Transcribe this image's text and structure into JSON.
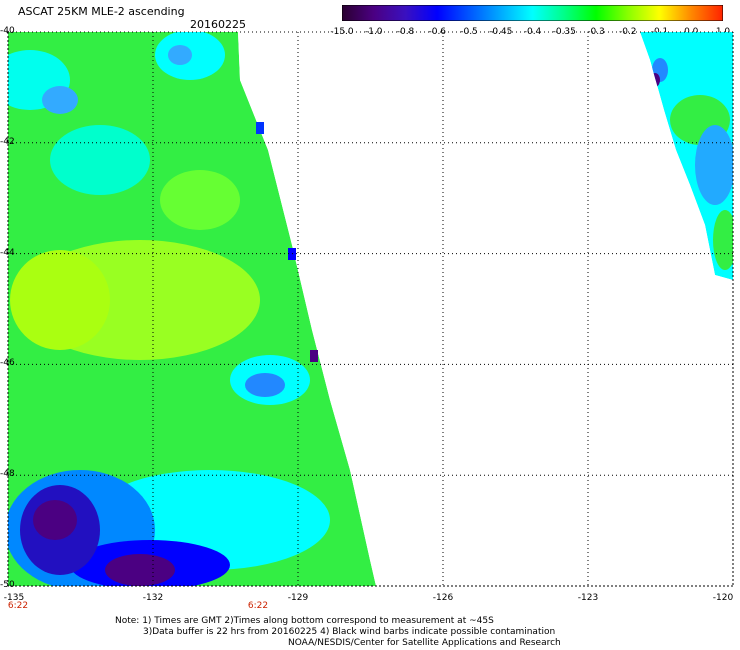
{
  "header": {
    "title": "ASCAT 25KM MLE-2 ascending",
    "date": "20160225"
  },
  "colorbar": {
    "labels": [
      "-15.0",
      "-1.0",
      "-0.8",
      "-0.6",
      "-0.5",
      "-0.45",
      "-0.4",
      "-0.35",
      "-0.3",
      "-0.2",
      "-0.1",
      "0.0",
      "1.0"
    ],
    "colors": [
      "#2a0030",
      "#4b0082",
      "#3a10c0",
      "#0000ff",
      "#0055ff",
      "#00aaff",
      "#00ffff",
      "#00ff88",
      "#00ff00",
      "#88ff00",
      "#ffff00",
      "#ff8800",
      "#ff2200"
    ]
  },
  "map": {
    "lat_labels": [
      "-40",
      "-42",
      "-44",
      "-46",
      "-48",
      "-50"
    ],
    "lon_labels": [
      "-135",
      "-132",
      "-129",
      "-126",
      "-123",
      "-120"
    ],
    "time_labels": [
      {
        "text": "6:22",
        "lon": -135
      },
      {
        "text": "6:22",
        "lon": -129
      }
    ]
  },
  "notes": {
    "line1": "Note: 1) Times are GMT 2)Times along bottom correspond to measurement at ~45S",
    "line2": "3)Data buffer is 22 hrs from 20160225 4) Black wind barbs indicate possible contamination",
    "line3": "NOAA/NESDIS/Center for Satellite Applications and Research"
  }
}
